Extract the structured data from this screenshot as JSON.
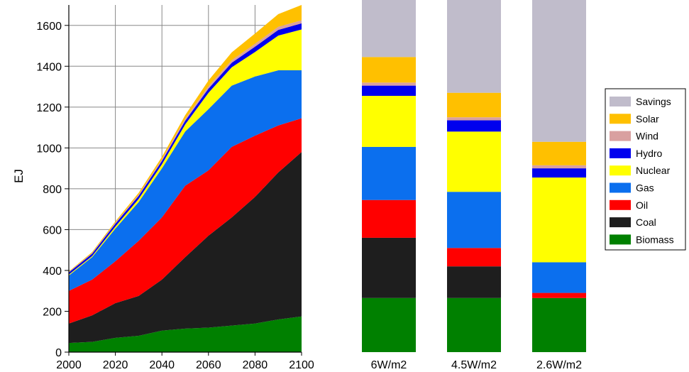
{
  "chart_data": [
    {
      "type": "area",
      "stacked": true,
      "xlabel": "",
      "ylabel": "EJ",
      "xlim": [
        2000,
        2100
      ],
      "ylim": [
        0,
        1700
      ],
      "grid": true,
      "x": [
        2000,
        2010,
        2020,
        2030,
        2040,
        2050,
        2060,
        2070,
        2080,
        2090,
        2100
      ],
      "x_ticks": [
        "2000",
        "2020",
        "2040",
        "2060",
        "2080",
        "2100"
      ],
      "y_ticks": [
        "0",
        "200",
        "400",
        "600",
        "800",
        "1000",
        "1200",
        "1400",
        "1600"
      ],
      "series": [
        {
          "name": "Biomass",
          "color": "#008000",
          "values": [
            45,
            50,
            70,
            80,
            105,
            115,
            120,
            130,
            140,
            160,
            175
          ]
        },
        {
          "name": "Coal",
          "color": "#1e1e1e",
          "values": [
            95,
            130,
            170,
            195,
            250,
            350,
            450,
            530,
            620,
            720,
            805
          ]
        },
        {
          "name": "Oil",
          "color": "#ff0000",
          "values": [
            160,
            175,
            205,
            270,
            305,
            350,
            320,
            345,
            300,
            230,
            165
          ]
        },
        {
          "name": "Gas",
          "color": "#0b6fee",
          "values": [
            75,
            110,
            160,
            190,
            240,
            265,
            300,
            300,
            290,
            270,
            235
          ]
        },
        {
          "name": "Nuclear",
          "color": "#ffff00",
          "values": [
            5,
            5,
            10,
            15,
            20,
            35,
            80,
            90,
            120,
            170,
            200
          ]
        },
        {
          "name": "Hydro",
          "color": "#0000ee",
          "values": [
            10,
            12,
            14,
            15,
            16,
            18,
            20,
            22,
            26,
            28,
            30
          ]
        },
        {
          "name": "Wind",
          "color": "#d9a0a0",
          "values": [
            2,
            3,
            5,
            6,
            8,
            10,
            12,
            13,
            14,
            15,
            15
          ]
        },
        {
          "name": "Solar",
          "color": "#ffc000",
          "values": [
            3,
            5,
            6,
            9,
            12,
            17,
            28,
            38,
            50,
            62,
            75
          ]
        }
      ]
    },
    {
      "type": "bar",
      "stacked": true,
      "categories": [
        "6W/m2",
        "4.5W/m2",
        "2.6W/m2"
      ],
      "ylim": [
        0,
        1700
      ],
      "series": [
        {
          "name": "Biomass",
          "color": "#008000",
          "values": [
            265,
            265,
            265
          ]
        },
        {
          "name": "Coal",
          "color": "#1e1e1e",
          "values": [
            295,
            155,
            0
          ]
        },
        {
          "name": "Oil",
          "color": "#ff0000",
          "values": [
            185,
            90,
            25
          ]
        },
        {
          "name": "Gas",
          "color": "#0b6fee",
          "values": [
            260,
            275,
            150
          ]
        },
        {
          "name": "Nuclear",
          "color": "#ffff00",
          "values": [
            250,
            295,
            415
          ]
        },
        {
          "name": "Hydro",
          "color": "#0000ee",
          "values": [
            50,
            55,
            45
          ]
        },
        {
          "name": "Wind",
          "color": "#d9a0a0",
          "values": [
            15,
            15,
            15
          ]
        },
        {
          "name": "Solar",
          "color": "#ffc000",
          "values": [
            125,
            120,
            115
          ]
        },
        {
          "name": "Savings",
          "color": "#c0bccb",
          "values": [
            295,
            465,
            705
          ]
        }
      ]
    }
  ],
  "legend": [
    "Savings",
    "Solar",
    "Wind",
    "Hydro",
    "Nuclear",
    "Gas",
    "Oil",
    "Coal",
    "Biomass"
  ],
  "colors": {
    "Savings": "#c0bccb",
    "Solar": "#ffc000",
    "Wind": "#d9a0a0",
    "Hydro": "#0000ee",
    "Nuclear": "#ffff00",
    "Gas": "#0b6fee",
    "Oil": "#ff0000",
    "Coal": "#1e1e1e",
    "Biomass": "#008000"
  }
}
